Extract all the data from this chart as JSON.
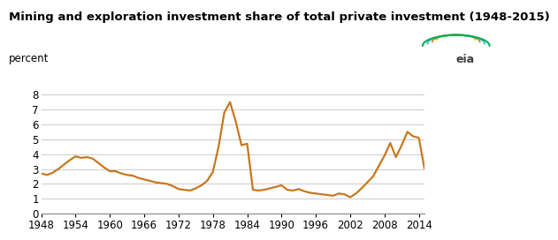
{
  "title": "Mining and exploration investment share of total private investment (1948-2015)",
  "ylabel": "percent",
  "line_color": "#c8781e",
  "line_width": 1.6,
  "background_color": "#ffffff",
  "grid_color": "#cccccc",
  "xlim": [
    1948,
    2015
  ],
  "ylim": [
    0,
    8.5
  ],
  "yticks": [
    0,
    1,
    2,
    3,
    4,
    5,
    6,
    7,
    8
  ],
  "xticks": [
    1948,
    1954,
    1960,
    1966,
    1972,
    1978,
    1984,
    1990,
    1996,
    2002,
    2008,
    2014
  ],
  "years": [
    1948,
    1949,
    1950,
    1951,
    1952,
    1953,
    1954,
    1955,
    1956,
    1957,
    1958,
    1959,
    1960,
    1961,
    1962,
    1963,
    1964,
    1965,
    1966,
    1967,
    1968,
    1969,
    1970,
    1971,
    1972,
    1973,
    1974,
    1975,
    1976,
    1977,
    1978,
    1979,
    1980,
    1981,
    1982,
    1983,
    1984,
    1985,
    1986,
    1987,
    1988,
    1989,
    1990,
    1991,
    1992,
    1993,
    1994,
    1995,
    1996,
    1997,
    1998,
    1999,
    2000,
    2001,
    2002,
    2003,
    2004,
    2005,
    2006,
    2007,
    2008,
    2009,
    2010,
    2011,
    2012,
    2013,
    2014,
    2015
  ],
  "values": [
    2.7,
    2.6,
    2.75,
    3.0,
    3.3,
    3.6,
    3.85,
    3.75,
    3.8,
    3.7,
    3.4,
    3.1,
    2.85,
    2.85,
    2.7,
    2.6,
    2.55,
    2.4,
    2.3,
    2.2,
    2.1,
    2.05,
    2.0,
    1.85,
    1.65,
    1.6,
    1.55,
    1.7,
    1.9,
    2.2,
    2.8,
    4.5,
    6.8,
    7.5,
    6.2,
    4.6,
    4.7,
    1.6,
    1.55,
    1.6,
    1.7,
    1.8,
    1.9,
    1.6,
    1.55,
    1.65,
    1.5,
    1.4,
    1.35,
    1.3,
    1.25,
    1.2,
    1.35,
    1.3,
    1.1,
    1.35,
    1.7,
    2.1,
    2.5,
    3.2,
    3.9,
    4.75,
    3.8,
    4.6,
    5.5,
    5.2,
    5.1,
    3.0
  ],
  "title_fontsize": 9.5,
  "label_fontsize": 8.5,
  "tick_fontsize": 8.5
}
